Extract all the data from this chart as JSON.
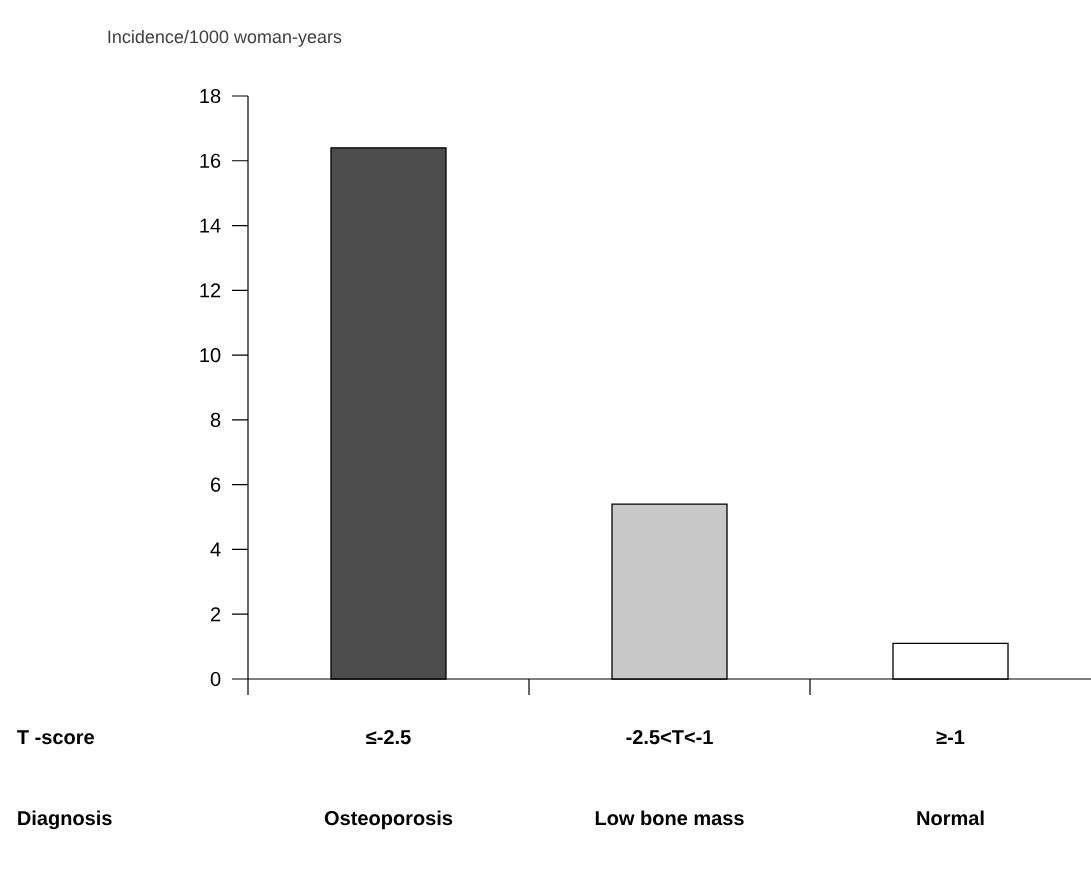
{
  "chart_data": {
    "type": "bar",
    "ylabel": "Incidence/1000 woman-years",
    "xlabel": "Diagnosis",
    "categories": [
      "Osteoporosis",
      "Low bone mass",
      "Normal"
    ],
    "values": [
      16.4,
      5.4,
      1.1
    ],
    "colors": [
      "#4d4d4d",
      "#c8c8c8",
      "#ffffff"
    ],
    "ylim": [
      0,
      18
    ],
    "yticks": [
      0,
      2,
      4,
      6,
      8,
      10,
      12,
      14,
      16,
      18
    ],
    "annotations": [
      "T -score",
      "≤-2.5",
      "-2.5<T<-1",
      "≥-1"
    ]
  }
}
